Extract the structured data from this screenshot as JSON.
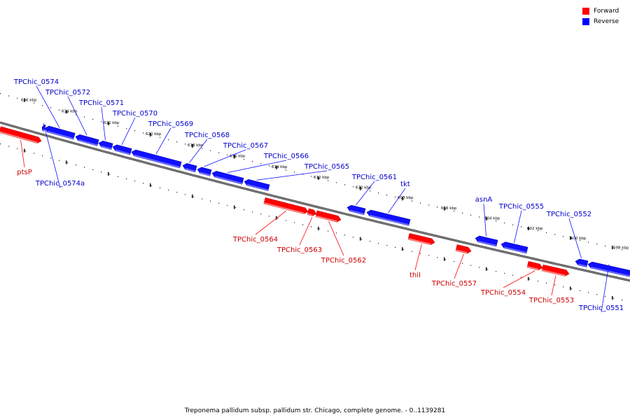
{
  "legend": {
    "forward": {
      "label": "Forward",
      "color": "#ff0000"
    },
    "reverse": {
      "label": "Reverse",
      "color": "#0000ff"
    }
  },
  "caption": "Treponema pallidum subsp. pallidum str. Chicago, complete genome. - 0..1139281",
  "backbone_color": "#888888",
  "ticks": [
    {
      "label": "626 kbp"
    },
    {
      "label": "624 kbp"
    },
    {
      "label": "622 kbp"
    },
    {
      "label": "620 kbp"
    },
    {
      "label": "618 kbp"
    },
    {
      "label": "616 kbp"
    },
    {
      "label": "614 kbp"
    },
    {
      "label": "612 kbp"
    },
    {
      "label": "610 kbp"
    },
    {
      "label": "608 kbp"
    },
    {
      "label": "606 kbp"
    },
    {
      "label": "604 kbp"
    },
    {
      "label": "602 kbp"
    },
    {
      "label": "600 kbp"
    },
    {
      "label": "598 kbp"
    }
  ],
  "genes": [
    {
      "name": "TPChic_0574",
      "strand": "reverse"
    },
    {
      "name": "TPChic_0572",
      "strand": "reverse"
    },
    {
      "name": "TPChic_0571",
      "strand": "reverse"
    },
    {
      "name": "TPChic_0570",
      "strand": "reverse"
    },
    {
      "name": "TPChic_0569",
      "strand": "reverse"
    },
    {
      "name": "TPChic_0568",
      "strand": "reverse"
    },
    {
      "name": "TPChic_0567",
      "strand": "reverse"
    },
    {
      "name": "TPChic_0566",
      "strand": "reverse"
    },
    {
      "name": "TPChic_0565",
      "strand": "reverse"
    },
    {
      "name": "TPChic_0561",
      "strand": "reverse"
    },
    {
      "name": "tkt",
      "strand": "reverse"
    },
    {
      "name": "asnA",
      "strand": "reverse"
    },
    {
      "name": "TPChic_0555",
      "strand": "reverse"
    },
    {
      "name": "TPChic_0552",
      "strand": "reverse"
    },
    {
      "name": "TPChic_0574a",
      "strand": "reverse"
    },
    {
      "name": "TPChic_0551",
      "strand": "reverse"
    },
    {
      "name": "ptsP",
      "strand": "forward"
    },
    {
      "name": "TPChic_0564",
      "strand": "forward"
    },
    {
      "name": "TPChic_0563",
      "strand": "forward"
    },
    {
      "name": "TPChic_0562",
      "strand": "forward"
    },
    {
      "name": "thiI",
      "strand": "forward"
    },
    {
      "name": "TPChic_0557",
      "strand": "forward"
    },
    {
      "name": "TPChic_0554",
      "strand": "forward"
    },
    {
      "name": "TPChic_0553",
      "strand": "forward"
    }
  ]
}
